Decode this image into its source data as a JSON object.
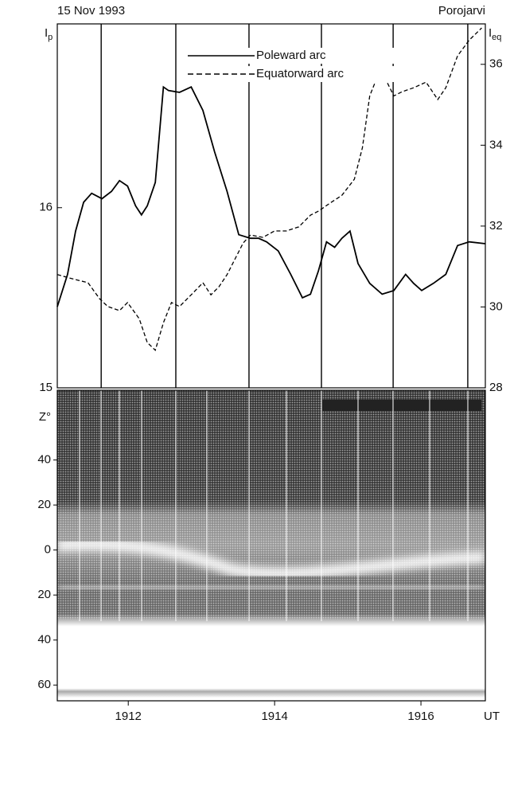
{
  "chart_data": [
    {
      "type": "line",
      "title": "15 Nov 1993",
      "subtitle": "Porojarvi",
      "y_label": {
        "text": "I",
        "subscript": "p"
      },
      "y2_label": {
        "text": "I",
        "subscript": "eq"
      },
      "xlim": [
        11.03,
        16.88
      ],
      "ylim": [
        15,
        17.02
      ],
      "yticks": [
        15,
        16
      ],
      "y2lim": [
        28,
        37
      ],
      "y2ticks": [
        28,
        30,
        32,
        34,
        36
      ],
      "markers": [
        11.63,
        12.65,
        13.65,
        14.64,
        15.62,
        16.64
      ],
      "legend": "top",
      "series": [
        {
          "name": "Poleward arc",
          "color": "#000",
          "style": "solid",
          "x": [
            11.03,
            11.17,
            11.28,
            11.39,
            11.5,
            11.64,
            11.77,
            11.88,
            11.99,
            12.1,
            12.18,
            12.26,
            12.37,
            12.48,
            12.55,
            12.7,
            12.86,
            13.02,
            13.18,
            13.35,
            13.51,
            13.67,
            13.78,
            13.89,
            14.05,
            14.22,
            14.38,
            14.49,
            14.6,
            14.71,
            14.82,
            14.92,
            15.03,
            15.14,
            15.3,
            15.47,
            15.63,
            15.79,
            15.9,
            16.01,
            16.17,
            16.34,
            16.5,
            16.66,
            16.88
          ],
          "values": [
            15.45,
            15.63,
            15.87,
            16.03,
            16.08,
            16.05,
            16.09,
            16.15,
            16.12,
            16.01,
            15.96,
            16.01,
            16.14,
            16.67,
            16.65,
            16.64,
            16.67,
            16.54,
            16.31,
            16.09,
            15.85,
            15.83,
            15.83,
            15.81,
            15.76,
            15.63,
            15.5,
            15.52,
            15.65,
            15.81,
            15.78,
            15.83,
            15.87,
            15.69,
            15.58,
            15.52,
            15.54,
            15.63,
            15.58,
            15.54,
            15.58,
            15.63,
            15.79,
            15.81,
            15.8
          ]
        },
        {
          "name": "Equatorward arc",
          "color": "#000",
          "style": "dashed",
          "axis": "y2",
          "x": [
            11.03,
            11.23,
            11.45,
            11.61,
            11.72,
            11.88,
            11.99,
            12.15,
            12.26,
            12.37,
            12.48,
            12.59,
            12.7,
            12.86,
            13.02,
            13.13,
            13.24,
            13.35,
            13.46,
            13.57,
            13.67,
            13.84,
            14.0,
            14.16,
            14.33,
            14.49,
            14.6,
            14.76,
            14.92,
            15.09,
            15.2,
            15.3,
            15.41,
            15.52,
            15.63,
            15.74,
            15.9,
            16.07,
            16.23,
            16.34,
            16.5,
            16.66,
            16.83
          ],
          "values": [
            30.8,
            30.7,
            30.6,
            30.2,
            30.01,
            29.91,
            30.11,
            29.71,
            29.12,
            28.93,
            29.61,
            30.11,
            30.01,
            30.3,
            30.6,
            30.3,
            30.5,
            30.8,
            31.19,
            31.58,
            31.78,
            31.72,
            31.88,
            31.88,
            31.98,
            32.27,
            32.37,
            32.57,
            32.76,
            33.16,
            33.94,
            35.22,
            35.72,
            35.62,
            35.22,
            35.32,
            35.42,
            35.56,
            35.13,
            35.42,
            36.21,
            36.6,
            36.9
          ]
        }
      ]
    },
    {
      "type": "keogram",
      "y_label": "Z°",
      "x_label": "UT",
      "xlim": [
        11.03,
        16.88
      ],
      "xticks": [
        {
          "value": 12,
          "label": "1912"
        },
        {
          "value": 14,
          "label": "1914"
        },
        {
          "value": 16,
          "label": "1916"
        }
      ],
      "ylim": [
        -67,
        71
      ],
      "yticks": [
        40,
        20,
        0,
        {
          "value": -20,
          "label": "20"
        },
        {
          "value": -40,
          "label": "40"
        },
        {
          "value": -60,
          "label": "60"
        }
      ]
    }
  ]
}
